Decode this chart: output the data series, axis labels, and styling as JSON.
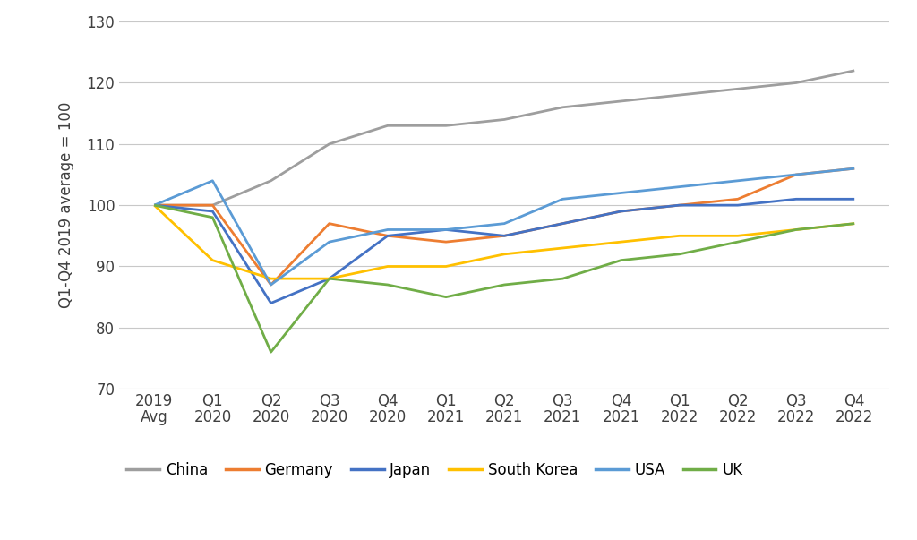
{
  "x_labels": [
    "2019\nAvg",
    "Q1\n2020",
    "Q2\n2020",
    "Q3\n2020",
    "Q4\n2020",
    "Q1\n2021",
    "Q2\n2021",
    "Q3\n2021",
    "Q4\n2021",
    "Q1\n2022",
    "Q2\n2022",
    "Q3\n2022",
    "Q4\n2022"
  ],
  "series": {
    "China": {
      "color": "#9E9E9E",
      "values": [
        100,
        100,
        104,
        110,
        113,
        113,
        114,
        116,
        117,
        118,
        119,
        120,
        122
      ]
    },
    "Germany": {
      "color": "#ED7D31",
      "values": [
        100,
        100,
        87,
        97,
        95,
        94,
        95,
        97,
        99,
        100,
        101,
        105,
        106
      ]
    },
    "Japan": {
      "color": "#4472C4",
      "values": [
        100,
        99,
        84,
        88,
        95,
        96,
        95,
        97,
        99,
        100,
        100,
        101,
        101
      ]
    },
    "South Korea": {
      "color": "#FFC000",
      "values": [
        100,
        91,
        88,
        88,
        90,
        90,
        92,
        93,
        94,
        95,
        95,
        96,
        97
      ]
    },
    "USA": {
      "color": "#5B9BD5",
      "values": [
        100,
        104,
        87,
        94,
        96,
        96,
        97,
        101,
        102,
        103,
        104,
        105,
        106
      ]
    },
    "UK": {
      "color": "#70AD47",
      "values": [
        100,
        98,
        76,
        88,
        87,
        85,
        87,
        88,
        91,
        92,
        94,
        96,
        97
      ]
    }
  },
  "ylabel": "Q1-Q4 2019 average = 100",
  "ylim": [
    70,
    130
  ],
  "yticks": [
    70,
    80,
    90,
    100,
    110,
    120,
    130
  ],
  "background_color": "#FFFFFF",
  "grid_color": "#C8C8C8",
  "legend_order": [
    "China",
    "Germany",
    "Japan",
    "South Korea",
    "USA",
    "UK"
  ],
  "linewidth": 2.0,
  "ylabel_fontsize": 12,
  "tick_fontsize": 12,
  "legend_fontsize": 12
}
